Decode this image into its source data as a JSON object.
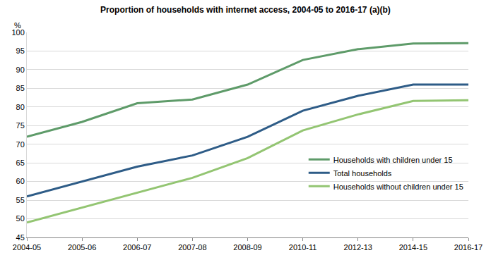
{
  "chart_data": {
    "type": "line",
    "title": "Proportion of households with internet access, 2004-05 to 2016-17 (a)(b)",
    "y_label": "%",
    "categories": [
      "2004-05",
      "2005-06",
      "2006-07",
      "2007-08",
      "2008-09",
      "2010-11",
      "2012-13",
      "2014-15",
      "2016-17"
    ],
    "series": [
      {
        "name": "Households with children under 15",
        "color": "#5e9b69",
        "values": [
          72,
          76,
          81,
          82,
          86,
          92.6,
          95.5,
          97,
          97.1
        ]
      },
      {
        "name": "Total households",
        "color": "#2e5c87",
        "values": [
          56,
          60,
          64,
          67,
          72,
          79,
          83,
          86,
          86
        ]
      },
      {
        "name": "Households without children under 15",
        "color": "#93c572",
        "values": [
          49,
          53,
          57,
          61,
          66.3,
          73.7,
          78,
          81.6,
          81.8
        ]
      }
    ],
    "ylim": [
      45,
      100
    ],
    "yticks": [
      45,
      50,
      55,
      60,
      65,
      70,
      75,
      80,
      85,
      90,
      95,
      100
    ],
    "grid": true,
    "legend": "right"
  }
}
